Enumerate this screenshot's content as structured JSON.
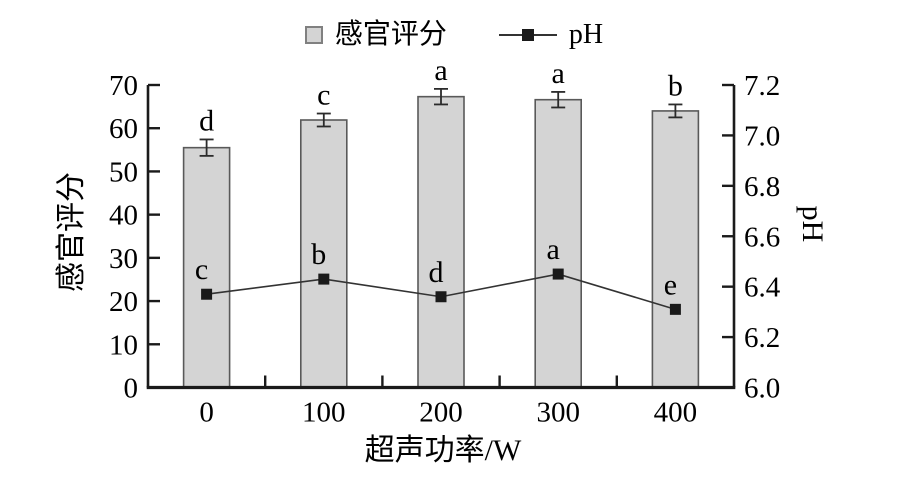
{
  "chart_data": {
    "type": "bar",
    "title": "",
    "categories": [
      "0",
      "100",
      "200",
      "300",
      "400"
    ],
    "series": [
      {
        "name": "感官评分",
        "type": "bar",
        "axis": "left",
        "values": [
          55.5,
          61.9,
          67.3,
          66.6,
          64.0
        ],
        "errors": [
          1.9,
          1.5,
          1.8,
          1.8,
          1.5
        ],
        "sig_letters": [
          "d",
          "c",
          "a",
          "a",
          "b"
        ]
      },
      {
        "name": "pH",
        "type": "line",
        "axis": "right",
        "values": [
          6.37,
          6.43,
          6.36,
          6.45,
          6.31
        ],
        "sig_letters": [
          "c",
          "b",
          "d",
          "a",
          "e"
        ]
      }
    ],
    "left_axis": {
      "title": "感官评分",
      "min": 0,
      "max": 70,
      "tick_labels": [
        "0",
        "10",
        "20",
        "30",
        "40",
        "50",
        "60",
        "70"
      ]
    },
    "right_axis": {
      "title": "pH",
      "min": 6.0,
      "max": 7.2,
      "tick_labels": [
        "6.0",
        "6.2",
        "6.4",
        "6.6",
        "6.8",
        "7.0",
        "7.2"
      ]
    },
    "x_axis": {
      "title": "超声功率/W"
    },
    "legend": [
      {
        "label": "感官评分"
      },
      {
        "label": "pH"
      }
    ],
    "grid": false,
    "legend_position": "top"
  },
  "colors": {
    "bar_fill": "#d4d4d4",
    "bar_stroke": "#595959",
    "line": "#333333",
    "marker": "#1a1a1a",
    "axis": "#1a1a1a",
    "error_bar": "#2b2b2b",
    "legend_swatch_border": "#808080",
    "text": "#000000"
  }
}
